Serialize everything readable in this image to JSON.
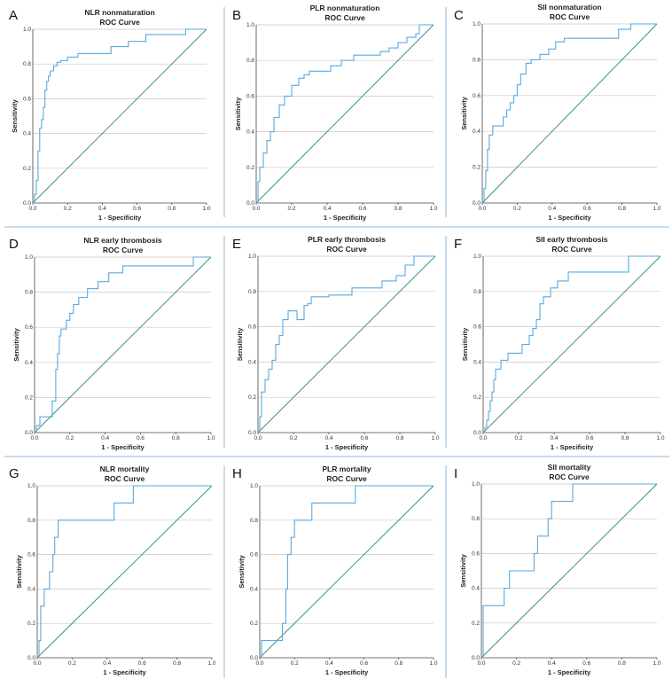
{
  "figure": {
    "panels": [
      "A",
      "B",
      "C",
      "D",
      "E",
      "F",
      "G",
      "H",
      "I"
    ]
  },
  "chart_data": [
    {
      "type": "line",
      "panel": "A",
      "title": "NLR  nonmaturation",
      "subtitle": "ROC Curve",
      "xlabel": "1 - Specificity",
      "ylabel": "Sensitivity",
      "xlim": [
        0,
        1
      ],
      "ylim": [
        0,
        1
      ],
      "xticks": [
        "0.0",
        "0.2",
        "0.4",
        "0.6",
        "0.8",
        "1.0"
      ],
      "yticks": [
        "0.0",
        "0.2",
        "0.4",
        "0.6",
        "0.8",
        "1.0"
      ],
      "x": [
        0,
        0.01,
        0.01,
        0.02,
        0.02,
        0.03,
        0.03,
        0.04,
        0.04,
        0.05,
        0.05,
        0.06,
        0.06,
        0.07,
        0.07,
        0.08,
        0.08,
        0.09,
        0.09,
        0.1,
        0.1,
        0.12,
        0.12,
        0.14,
        0.14,
        0.16,
        0.16,
        0.2,
        0.2,
        0.26,
        0.26,
        0.32,
        0.32,
        0.45,
        0.45,
        0.55,
        0.55,
        0.65,
        0.65,
        0.88,
        0.88,
        1.0
      ],
      "y": [
        0,
        0,
        0.05,
        0.05,
        0.13,
        0.13,
        0.3,
        0.3,
        0.43,
        0.43,
        0.48,
        0.48,
        0.55,
        0.55,
        0.65,
        0.65,
        0.7,
        0.7,
        0.73,
        0.73,
        0.76,
        0.76,
        0.79,
        0.79,
        0.81,
        0.81,
        0.82,
        0.82,
        0.84,
        0.84,
        0.86,
        0.86,
        0.86,
        0.86,
        0.9,
        0.9,
        0.93,
        0.93,
        0.97,
        0.97,
        1.0,
        1.0
      ]
    },
    {
      "type": "line",
      "panel": "B",
      "title": "PLR  nonmaturation",
      "subtitle": "ROC Curve",
      "xlabel": "1 - Specificity",
      "ylabel": "Sensitivity",
      "xlim": [
        0,
        1
      ],
      "ylim": [
        0,
        1
      ],
      "xticks": [
        "0.0",
        "0.2",
        "0.4",
        "0.6",
        "0.8",
        "1.0"
      ],
      "yticks": [
        "0.0",
        "0.2",
        "0.4",
        "0.6",
        "0.8",
        "1.0"
      ],
      "x": [
        0,
        0.01,
        0.01,
        0.02,
        0.02,
        0.04,
        0.04,
        0.06,
        0.06,
        0.08,
        0.08,
        0.1,
        0.1,
        0.13,
        0.13,
        0.16,
        0.16,
        0.2,
        0.2,
        0.24,
        0.24,
        0.27,
        0.27,
        0.3,
        0.3,
        0.42,
        0.42,
        0.48,
        0.48,
        0.55,
        0.55,
        0.7,
        0.7,
        0.75,
        0.75,
        0.8,
        0.8,
        0.85,
        0.85,
        0.9,
        0.9,
        0.92,
        0.92,
        1.0
      ],
      "y": [
        0,
        0,
        0.12,
        0.12,
        0.2,
        0.2,
        0.28,
        0.28,
        0.35,
        0.35,
        0.4,
        0.4,
        0.48,
        0.48,
        0.55,
        0.55,
        0.6,
        0.6,
        0.66,
        0.66,
        0.7,
        0.7,
        0.72,
        0.72,
        0.74,
        0.74,
        0.77,
        0.77,
        0.8,
        0.8,
        0.83,
        0.83,
        0.85,
        0.85,
        0.87,
        0.87,
        0.9,
        0.9,
        0.93,
        0.93,
        0.95,
        0.95,
        1.0,
        1.0
      ]
    },
    {
      "type": "line",
      "panel": "C",
      "title": "SII  nonmaturation",
      "subtitle": "ROC Curve",
      "xlabel": "1 - Specificity",
      "ylabel": "Sensitivity",
      "xlim": [
        0,
        1
      ],
      "ylim": [
        0,
        1
      ],
      "xticks": [
        "0.0",
        "0.2",
        "0.4",
        "0.6",
        "0.8",
        "1.0"
      ],
      "yticks": [
        "0.0",
        "0.2",
        "0.4",
        "0.6",
        "0.8",
        "1.0"
      ],
      "x": [
        0,
        0.01,
        0.01,
        0.02,
        0.02,
        0.03,
        0.03,
        0.04,
        0.04,
        0.06,
        0.06,
        0.12,
        0.12,
        0.14,
        0.14,
        0.16,
        0.16,
        0.18,
        0.18,
        0.2,
        0.2,
        0.22,
        0.22,
        0.25,
        0.25,
        0.28,
        0.28,
        0.33,
        0.33,
        0.38,
        0.38,
        0.42,
        0.42,
        0.47,
        0.47,
        0.78,
        0.78,
        0.85,
        0.85,
        1.0
      ],
      "y": [
        0,
        0,
        0.08,
        0.08,
        0.18,
        0.18,
        0.3,
        0.3,
        0.38,
        0.38,
        0.43,
        0.43,
        0.48,
        0.48,
        0.52,
        0.52,
        0.56,
        0.56,
        0.6,
        0.6,
        0.66,
        0.66,
        0.72,
        0.72,
        0.78,
        0.78,
        0.8,
        0.8,
        0.83,
        0.83,
        0.86,
        0.86,
        0.9,
        0.9,
        0.92,
        0.92,
        0.97,
        0.97,
        1.0,
        1.0
      ]
    },
    {
      "type": "line",
      "panel": "D",
      "title": "NLR early thrombosis",
      "subtitle": "ROC Curve",
      "xlabel": "1 - Specificity",
      "ylabel": "Sensitivity",
      "xlim": [
        0,
        1
      ],
      "ylim": [
        0,
        1
      ],
      "xticks": [
        "0.0",
        "0.2",
        "0.4",
        "0.6",
        "0.8",
        "1.0"
      ],
      "yticks": [
        "0.0",
        "0.2",
        "0.4",
        "0.6",
        "0.8",
        "1.0"
      ],
      "x": [
        0,
        0.01,
        0.01,
        0.03,
        0.03,
        0.1,
        0.1,
        0.12,
        0.12,
        0.13,
        0.13,
        0.14,
        0.14,
        0.15,
        0.15,
        0.18,
        0.18,
        0.2,
        0.2,
        0.22,
        0.22,
        0.25,
        0.25,
        0.3,
        0.3,
        0.36,
        0.36,
        0.42,
        0.42,
        0.5,
        0.5,
        0.9,
        0.9,
        1.0
      ],
      "y": [
        0,
        0,
        0.04,
        0.04,
        0.09,
        0.09,
        0.18,
        0.18,
        0.36,
        0.36,
        0.45,
        0.45,
        0.55,
        0.55,
        0.59,
        0.59,
        0.64,
        0.64,
        0.68,
        0.68,
        0.73,
        0.73,
        0.77,
        0.77,
        0.82,
        0.82,
        0.86,
        0.86,
        0.91,
        0.91,
        0.95,
        0.95,
        1.0,
        1.0
      ]
    },
    {
      "type": "line",
      "panel": "E",
      "title": "PLR early thrombosis",
      "subtitle": "ROC Curve",
      "xlabel": "1 - Specificity",
      "ylabel": "Sensitivity",
      "xlim": [
        0,
        1
      ],
      "ylim": [
        0,
        1
      ],
      "xticks": [
        "0.0",
        "0.2",
        "0.4",
        "0.6",
        "0.8",
        "1.0"
      ],
      "yticks": [
        "0.0",
        "0.2",
        "0.4",
        "0.6",
        "0.8",
        "1.0"
      ],
      "x": [
        0,
        0.01,
        0.01,
        0.02,
        0.02,
        0.04,
        0.04,
        0.06,
        0.06,
        0.08,
        0.08,
        0.1,
        0.1,
        0.12,
        0.12,
        0.14,
        0.14,
        0.17,
        0.17,
        0.22,
        0.22,
        0.26,
        0.26,
        0.28,
        0.28,
        0.3,
        0.3,
        0.4,
        0.4,
        0.53,
        0.53,
        0.7,
        0.7,
        0.78,
        0.78,
        0.83,
        0.83,
        0.88,
        0.88,
        0.92,
        0.92,
        1.0
      ],
      "y": [
        0,
        0,
        0.09,
        0.09,
        0.23,
        0.23,
        0.3,
        0.3,
        0.36,
        0.36,
        0.41,
        0.41,
        0.5,
        0.5,
        0.55,
        0.55,
        0.64,
        0.64,
        0.69,
        0.69,
        0.64,
        0.64,
        0.72,
        0.72,
        0.73,
        0.73,
        0.77,
        0.77,
        0.78,
        0.78,
        0.82,
        0.82,
        0.86,
        0.86,
        0.89,
        0.89,
        0.95,
        0.95,
        1.0,
        1.0,
        1.0,
        1.0
      ]
    },
    {
      "type": "line",
      "panel": "F",
      "title": "SII early thrombosis",
      "subtitle": "ROC Curve",
      "xlabel": "1 - Specificity",
      "ylabel": "Sensitivity",
      "xlim": [
        0,
        1
      ],
      "ylim": [
        0,
        1
      ],
      "xticks": [
        "0.0",
        "0.2",
        "0.4",
        "0.6",
        "0.8",
        "1.0"
      ],
      "yticks": [
        "0.0",
        "0.2",
        "0.4",
        "0.6",
        "0.8",
        "1.0"
      ],
      "x": [
        0,
        0.01,
        0.01,
        0.02,
        0.02,
        0.03,
        0.03,
        0.04,
        0.04,
        0.05,
        0.05,
        0.06,
        0.06,
        0.07,
        0.07,
        0.1,
        0.1,
        0.14,
        0.14,
        0.22,
        0.22,
        0.26,
        0.26,
        0.28,
        0.28,
        0.3,
        0.3,
        0.32,
        0.32,
        0.34,
        0.34,
        0.38,
        0.38,
        0.42,
        0.42,
        0.48,
        0.48,
        0.82,
        0.82,
        1.0
      ],
      "y": [
        0,
        0,
        0.03,
        0.03,
        0.07,
        0.07,
        0.12,
        0.12,
        0.18,
        0.18,
        0.23,
        0.23,
        0.3,
        0.3,
        0.36,
        0.36,
        0.41,
        0.41,
        0.45,
        0.45,
        0.5,
        0.5,
        0.55,
        0.55,
        0.59,
        0.59,
        0.64,
        0.64,
        0.73,
        0.73,
        0.77,
        0.77,
        0.82,
        0.82,
        0.86,
        0.86,
        0.91,
        0.91,
        1.0,
        1.0
      ]
    },
    {
      "type": "line",
      "panel": "G",
      "title": "NLR mortality",
      "subtitle": "ROC Curve",
      "xlabel": "1 - Specificity",
      "ylabel": "Sensitivity",
      "xlim": [
        0,
        1
      ],
      "ylim": [
        0,
        1
      ],
      "xticks": [
        "0.0",
        "0.2",
        "0.4",
        "0.6",
        "0.8",
        "1.0"
      ],
      "yticks": [
        "0.0",
        "0.2",
        "0.4",
        "0.6",
        "0.8",
        "1.0"
      ],
      "x": [
        0,
        0.01,
        0.01,
        0.02,
        0.02,
        0.04,
        0.04,
        0.07,
        0.07,
        0.09,
        0.09,
        0.1,
        0.1,
        0.12,
        0.12,
        0.16,
        0.16,
        0.44,
        0.44,
        0.55,
        0.55,
        1.0
      ],
      "y": [
        0,
        0,
        0.1,
        0.1,
        0.3,
        0.3,
        0.4,
        0.4,
        0.5,
        0.5,
        0.6,
        0.6,
        0.7,
        0.7,
        0.8,
        0.8,
        0.8,
        0.8,
        0.9,
        0.9,
        1.0,
        1.0
      ]
    },
    {
      "type": "line",
      "panel": "H",
      "title": "PLR mortality",
      "subtitle": "ROC Curve",
      "xlabel": "1 - Specificity",
      "ylabel": "Sensitivity",
      "xlim": [
        0,
        1
      ],
      "ylim": [
        0,
        1
      ],
      "xticks": [
        "0.0",
        "0.2",
        "0.4",
        "0.6",
        "0.8",
        "1.0"
      ],
      "yticks": [
        "0.0",
        "0.2",
        "0.4",
        "0.6",
        "0.8",
        "1.0"
      ],
      "x": [
        0,
        0.01,
        0.01,
        0.13,
        0.13,
        0.15,
        0.15,
        0.16,
        0.16,
        0.18,
        0.18,
        0.2,
        0.2,
        0.3,
        0.3,
        0.55,
        0.55,
        1.0
      ],
      "y": [
        0,
        0,
        0.1,
        0.1,
        0.2,
        0.2,
        0.4,
        0.4,
        0.6,
        0.6,
        0.7,
        0.7,
        0.8,
        0.8,
        0.9,
        0.9,
        1.0,
        1.0
      ]
    },
    {
      "type": "line",
      "panel": "I",
      "title": "SII mortality",
      "subtitle": "ROC Curve",
      "xlabel": "1 - Specificity",
      "ylabel": "Sensitivity",
      "xlim": [
        0,
        1
      ],
      "ylim": [
        0,
        1
      ],
      "xticks": [
        "0.0",
        "0.2",
        "0.4",
        "0.6",
        "0.8",
        "1.0"
      ],
      "yticks": [
        "0.0",
        "0.2",
        "0.4",
        "0.6",
        "0.8",
        "1.0"
      ],
      "x": [
        0,
        0.01,
        0.01,
        0.13,
        0.13,
        0.16,
        0.16,
        0.3,
        0.3,
        0.32,
        0.32,
        0.38,
        0.38,
        0.4,
        0.4,
        0.52,
        0.52,
        1.0
      ],
      "y": [
        0,
        0,
        0.3,
        0.3,
        0.4,
        0.4,
        0.5,
        0.5,
        0.6,
        0.6,
        0.7,
        0.7,
        0.8,
        0.8,
        0.9,
        0.9,
        1.0,
        1.0
      ]
    }
  ]
}
